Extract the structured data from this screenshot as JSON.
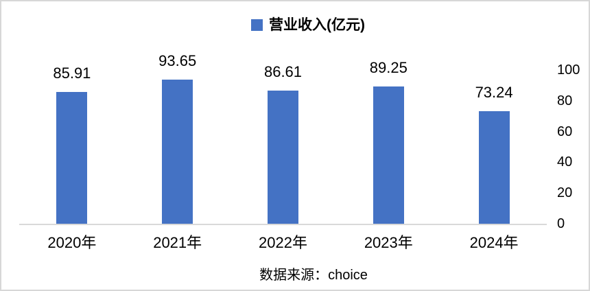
{
  "chart_data": {
    "type": "bar",
    "title": "",
    "legend": "营业收入(亿元)",
    "legend_position": "top-center",
    "categories": [
      "2020年",
      "2021年",
      "2022年",
      "2023年",
      "2024年"
    ],
    "values": [
      85.91,
      93.65,
      86.61,
      89.25,
      73.24
    ],
    "value_labels": [
      "85.91",
      "93.65",
      "86.61",
      "89.25",
      "73.24"
    ],
    "xlabel": "",
    "ylabel": "",
    "ylim": [
      0,
      100
    ],
    "y_ticks": [
      100,
      80,
      60,
      40,
      20,
      0
    ],
    "y_axis_side": "right",
    "grid": false,
    "bar_color": "#4472c4",
    "axis_line_color": "#d9d9d9",
    "text_color": "#000000"
  },
  "caption": "数据来源：choice"
}
